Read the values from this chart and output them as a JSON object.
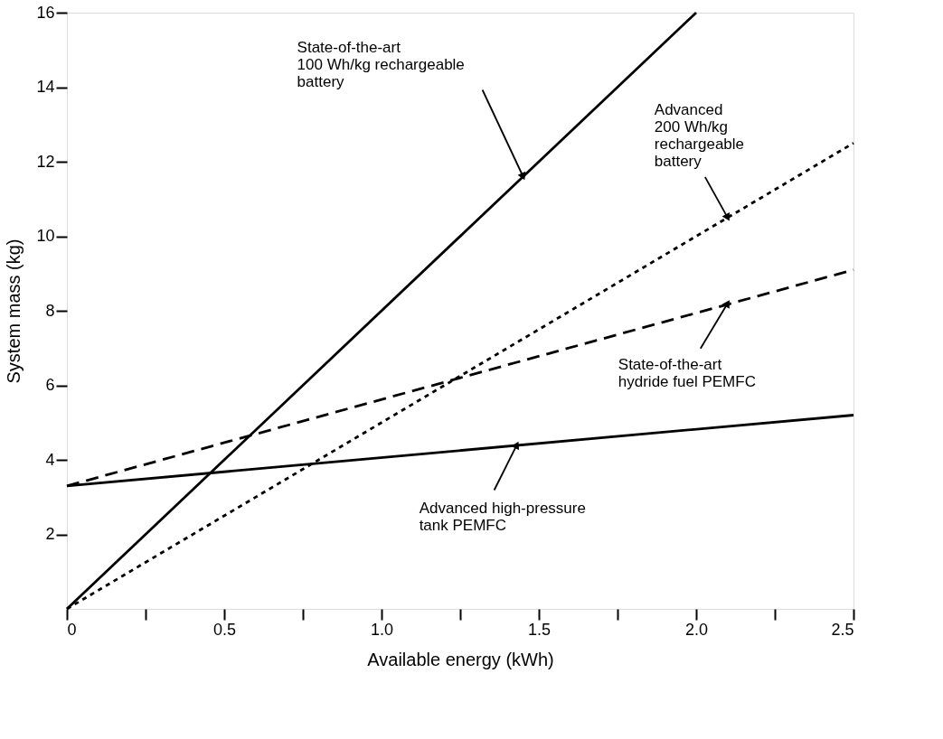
{
  "chart_data": {
    "type": "line",
    "xlabel": "Available energy (kWh)",
    "ylabel": "System mass (kg)",
    "xlim": [
      0,
      2.5
    ],
    "ylim": [
      0,
      16
    ],
    "xticks": [
      0,
      {
        "value": 0.25,
        "label": null
      },
      0.5,
      {
        "value": 0.75,
        "label": null
      },
      {
        "value": 1,
        "label": "1.0"
      },
      {
        "value": 1.25,
        "label": null
      },
      1.5,
      {
        "value": 1.75,
        "label": null
      },
      {
        "value": 2,
        "label": "2.0"
      },
      {
        "value": 2.25,
        "label": null
      },
      2.5
    ],
    "yticks": [
      2,
      4,
      6,
      8,
      10,
      12,
      14,
      16
    ],
    "grid": false,
    "series": [
      {
        "color": "#000000",
        "line_style": "solid",
        "x": [
          0,
          2.0
        ],
        "values": [
          0,
          16
        ]
      },
      {
        "color": "#000000",
        "line_style": "dotted",
        "x": [
          0,
          2.5
        ],
        "values": [
          0,
          12.5
        ]
      },
      {
        "color": "#000000",
        "line_style": "dashed",
        "x": [
          0,
          2.5
        ],
        "values": [
          3.3,
          9.1
        ]
      },
      {
        "color": "#000000",
        "line_style": "solid",
        "x": [
          0,
          2.5
        ],
        "values": [
          3.3,
          5.2
        ]
      }
    ],
    "annotations": [
      {
        "text": "State-of-the-art\n100 Wh/kg rechargeable\n battery",
        "x": 1.45,
        "y": 11.6
      },
      {
        "text": "Advanced\n200 Wh/kg\nrechargeable\nbattery",
        "x": 2.1,
        "y": 10.5
      },
      {
        "text": "State-of-the-art\nhydride fuel PEMFC",
        "x": 2.1,
        "y": 8.2
      },
      {
        "text": "Advanced high-pressure\ntank PEMFC",
        "x": 1.43,
        "y": 4.4
      }
    ]
  }
}
